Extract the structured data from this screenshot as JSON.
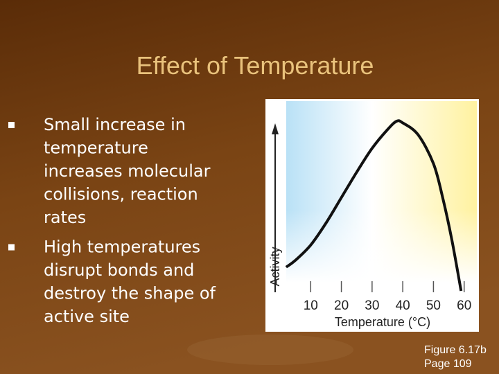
{
  "title": "Effect of Temperature",
  "bullets": [
    [
      "Small increase in",
      "temperature",
      "increases molecular",
      "collisions, reaction",
      "rates"
    ],
    [
      "High temperatures",
      "disrupt bonds and",
      "destroy the shape of",
      "active site"
    ]
  ],
  "caption": [
    "Figure 6.17b",
    "Page 109"
  ],
  "chart_data": {
    "type": "line",
    "x_label": "Temperature (°C)",
    "y_label": "Activity",
    "x": [
      2,
      5,
      10,
      15,
      20,
      25,
      30,
      35,
      38,
      40,
      45,
      50,
      53,
      56,
      59
    ],
    "values": [
      14,
      18,
      27,
      40,
      55,
      70,
      84,
      95,
      100,
      99,
      92,
      75,
      55,
      30,
      0
    ],
    "color": "#111111",
    "xlim": [
      0,
      63
    ],
    "ylim": [
      0,
      100
    ],
    "xticks": [
      10,
      20,
      30,
      40,
      50,
      60
    ]
  }
}
